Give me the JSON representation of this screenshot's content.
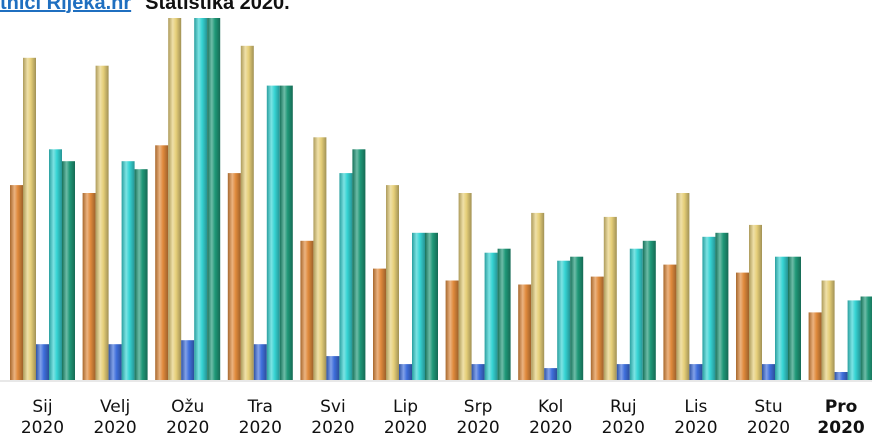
{
  "header": {
    "site_link": "tnici Rijeka.hr",
    "title": "Statistika 2020."
  },
  "colors": {
    "series": [
      "#e08a3c",
      "#e6cf79",
      "#3f6fdc",
      "#36d4d4",
      "#1f9878"
    ],
    "highlight_series": [
      "#e07b2a",
      "#e3c866",
      "#2f5fd8",
      "#2bc8cc",
      "#168a6c"
    ]
  },
  "chart_data": {
    "type": "bar",
    "categories": [
      {
        "month": "Sij",
        "year": "2020",
        "bold": false
      },
      {
        "month": "Velj",
        "year": "2020",
        "bold": false
      },
      {
        "month": "Ožu",
        "year": "2020",
        "bold": false
      },
      {
        "month": "Tra",
        "year": "2020",
        "bold": false
      },
      {
        "month": "Svi",
        "year": "2020",
        "bold": false
      },
      {
        "month": "Lip",
        "year": "2020",
        "bold": false
      },
      {
        "month": "Srp",
        "year": "2020",
        "bold": false
      },
      {
        "month": "Kol",
        "year": "2020",
        "bold": false
      },
      {
        "month": "Ruj",
        "year": "2020",
        "bold": false
      },
      {
        "month": "Lis",
        "year": "2020",
        "bold": false
      },
      {
        "month": "Stu",
        "year": "2020",
        "bold": false
      },
      {
        "month": "Pro",
        "year": "2020",
        "bold": true
      }
    ],
    "series": [
      {
        "values": [
          49,
          47,
          59,
          52,
          35,
          28,
          25,
          24,
          26,
          29,
          27,
          17
        ]
      },
      {
        "values": [
          81,
          79,
          91,
          84,
          61,
          49,
          47,
          42,
          41,
          47,
          39,
          25
        ]
      },
      {
        "values": [
          9,
          9,
          10,
          9,
          6,
          4,
          4,
          3,
          4,
          4,
          4,
          2
        ]
      },
      {
        "values": [
          58,
          55,
          91,
          74,
          52,
          37,
          32,
          30,
          33,
          36,
          31,
          20
        ]
      },
      {
        "values": [
          55,
          53,
          91,
          74,
          58,
          37,
          33,
          31,
          35,
          37,
          31,
          21
        ]
      }
    ],
    "ylim": [
      0,
      91
    ],
    "grid": false,
    "legend": "none"
  }
}
